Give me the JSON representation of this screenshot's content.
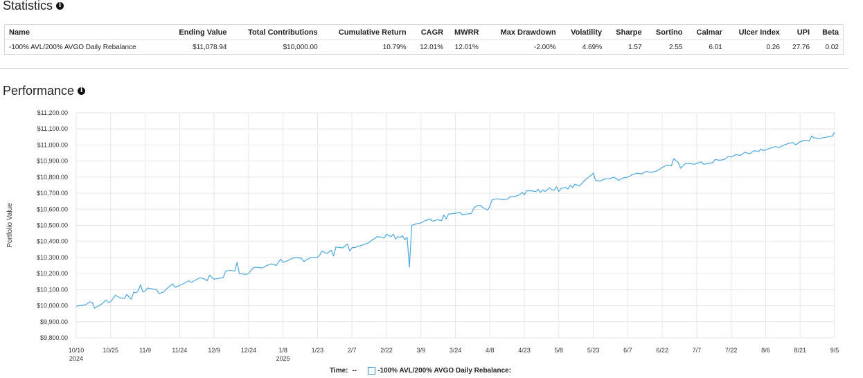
{
  "statistics": {
    "title": "Statistics",
    "columns": [
      "Name",
      "Ending Value",
      "Total Contributions",
      "Cumulative Return",
      "CAGR",
      "MWRR",
      "Max Drawdown",
      "Volatility",
      "Sharpe",
      "Sortino",
      "Calmar",
      "Ulcer Index",
      "UPI",
      "Beta"
    ],
    "row": {
      "name": "-100% AVL/200% AVGO Daily Rebalance",
      "ending_value": "$11,078.94",
      "total_contributions": "$10,000.00",
      "cumulative_return": "10.79%",
      "cagr": "12.01%",
      "mwrr": "12.01%",
      "max_drawdown": "-2.00%",
      "volatility": "4.69%",
      "sharpe": "1.57",
      "sortino": "2.55",
      "calmar": "6.01",
      "ulcer_index": "0.26",
      "upi": "27.76",
      "beta": "0.02"
    }
  },
  "performance": {
    "title": "Performance",
    "legend": {
      "time_label": "Time:",
      "time_value": "--",
      "series_label": "-100% AVL/200% AVGO Daily Rebalance:"
    }
  },
  "chart_data": {
    "type": "line",
    "ylabel": "Portfolio Value",
    "xlabel": "",
    "ylim": [
      9800,
      11200
    ],
    "y_ticks": [
      "$9,800.00",
      "$9,900.00",
      "$10,000.00",
      "$10,100.00",
      "$10,200.00",
      "$10,300.00",
      "$10,400.00",
      "$10,500.00",
      "$10,600.00",
      "$10,700.00",
      "$10,800.00",
      "$10,900.00",
      "$11,000.00",
      "$11,100.00",
      "$11,200.00"
    ],
    "x_ticks": [
      {
        "label": "10/10",
        "sub": "2024"
      },
      {
        "label": "10/25",
        "sub": ""
      },
      {
        "label": "11/9",
        "sub": ""
      },
      {
        "label": "11/24",
        "sub": ""
      },
      {
        "label": "12/9",
        "sub": ""
      },
      {
        "label": "12/24",
        "sub": ""
      },
      {
        "label": "1/8",
        "sub": "2025"
      },
      {
        "label": "1/23",
        "sub": ""
      },
      {
        "label": "2/7",
        "sub": ""
      },
      {
        "label": "2/22",
        "sub": ""
      },
      {
        "label": "3/9",
        "sub": ""
      },
      {
        "label": "3/24",
        "sub": ""
      },
      {
        "label": "4/8",
        "sub": ""
      },
      {
        "label": "4/23",
        "sub": ""
      },
      {
        "label": "5/8",
        "sub": ""
      },
      {
        "label": "5/23",
        "sub": ""
      },
      {
        "label": "6/7",
        "sub": ""
      },
      {
        "label": "6/22",
        "sub": ""
      },
      {
        "label": "7/7",
        "sub": ""
      },
      {
        "label": "7/22",
        "sub": ""
      },
      {
        "label": "8/6",
        "sub": ""
      },
      {
        "label": "8/21",
        "sub": ""
      },
      {
        "label": "9/5",
        "sub": ""
      }
    ],
    "grid": true,
    "series": [
      {
        "name": "-100% AVL/200% AVGO Daily Rebalance",
        "color": "#4aa8e0",
        "points": [
          [
            "10/10",
            9995
          ],
          [
            "10/11",
            10000
          ],
          [
            "10/14",
            10005
          ],
          [
            "10/16",
            10025
          ],
          [
            "10/17",
            10020
          ],
          [
            "10/18",
            9985
          ],
          [
            "10/21",
            10010
          ],
          [
            "10/23",
            10035
          ],
          [
            "10/24",
            10020
          ],
          [
            "10/25",
            10025
          ],
          [
            "10/27",
            10065
          ],
          [
            "10/29",
            10050
          ],
          [
            "10/31",
            10045
          ],
          [
            "11/1",
            10070
          ],
          [
            "11/3",
            10040
          ],
          [
            "11/4",
            10085
          ],
          [
            "11/5",
            10080
          ],
          [
            "11/6",
            10095
          ],
          [
            "11/7",
            10130
          ],
          [
            "11/8",
            10085
          ],
          [
            "11/9",
            10090
          ],
          [
            "11/10",
            10110
          ],
          [
            "11/12",
            10105
          ],
          [
            "11/14",
            10100
          ],
          [
            "11/15",
            10075
          ],
          [
            "11/17",
            10085
          ],
          [
            "11/18",
            10100
          ],
          [
            "11/20",
            10125
          ],
          [
            "11/21",
            10135
          ],
          [
            "11/22",
            10115
          ],
          [
            "11/24",
            10125
          ],
          [
            "11/26",
            10140
          ],
          [
            "11/28",
            10155
          ],
          [
            "11/29",
            10145
          ],
          [
            "12/1",
            10160
          ],
          [
            "12/3",
            10175
          ],
          [
            "12/5",
            10165
          ],
          [
            "12/6",
            10155
          ],
          [
            "12/7",
            10190
          ],
          [
            "12/9",
            10165
          ],
          [
            "12/11",
            10170
          ],
          [
            "12/13",
            10175
          ],
          [
            "12/14",
            10215
          ],
          [
            "12/16",
            10220
          ],
          [
            "12/18",
            10215
          ],
          [
            "12/19",
            10270
          ],
          [
            "12/20",
            10200
          ],
          [
            "12/23",
            10195
          ],
          [
            "12/24",
            10200
          ],
          [
            "12/26",
            10235
          ],
          [
            "12/27",
            10240
          ],
          [
            "12/30",
            10235
          ],
          [
            "1/1",
            10250
          ],
          [
            "1/3",
            10260
          ],
          [
            "1/5",
            10250
          ],
          [
            "1/7",
            10290
          ],
          [
            "1/8",
            10270
          ],
          [
            "1/10",
            10280
          ],
          [
            "1/12",
            10295
          ],
          [
            "1/14",
            10300
          ],
          [
            "1/16",
            10295
          ],
          [
            "1/17",
            10275
          ],
          [
            "1/20",
            10300
          ],
          [
            "1/22",
            10300
          ],
          [
            "1/23",
            10300
          ],
          [
            "1/24",
            10315
          ],
          [
            "1/25",
            10340
          ],
          [
            "1/27",
            10325
          ],
          [
            "1/29",
            10345
          ],
          [
            "1/30",
            10310
          ],
          [
            "1/31",
            10365
          ],
          [
            "2/3",
            10360
          ],
          [
            "2/5",
            10385
          ],
          [
            "2/6",
            10340
          ],
          [
            "2/7",
            10360
          ],
          [
            "2/9",
            10365
          ],
          [
            "2/11",
            10375
          ],
          [
            "2/13",
            10385
          ],
          [
            "2/14",
            10390
          ],
          [
            "2/16",
            10410
          ],
          [
            "2/18",
            10430
          ],
          [
            "2/20",
            10425
          ],
          [
            "2/21",
            10420
          ],
          [
            "2/22",
            10445
          ],
          [
            "2/24",
            10430
          ],
          [
            "2/25",
            10445
          ],
          [
            "2/26",
            10415
          ],
          [
            "2/27",
            10430
          ],
          [
            "2/28",
            10425
          ],
          [
            "3/1",
            10435
          ],
          [
            "3/2",
            10410
          ],
          [
            "3/3",
            10425
          ],
          [
            "3/4",
            10240
          ],
          [
            "3/5",
            10500
          ],
          [
            "3/7",
            10510
          ],
          [
            "3/9",
            10515
          ],
          [
            "3/11",
            10530
          ],
          [
            "3/13",
            10540
          ],
          [
            "3/14",
            10525
          ],
          [
            "3/16",
            10535
          ],
          [
            "3/18",
            10530
          ],
          [
            "3/19",
            10565
          ],
          [
            "3/20",
            10540
          ],
          [
            "3/21",
            10570
          ],
          [
            "3/24",
            10575
          ],
          [
            "3/26",
            10580
          ],
          [
            "3/27",
            10565
          ],
          [
            "3/29",
            10570
          ],
          [
            "3/31",
            10575
          ],
          [
            "4/1",
            10605
          ],
          [
            "4/2",
            10620
          ],
          [
            "4/4",
            10625
          ],
          [
            "4/5",
            10610
          ],
          [
            "4/7",
            10595
          ],
          [
            "4/8",
            10620
          ],
          [
            "4/9",
            10660
          ],
          [
            "4/11",
            10665
          ],
          [
            "4/14",
            10660
          ],
          [
            "4/16",
            10665
          ],
          [
            "4/17",
            10680
          ],
          [
            "4/19",
            10680
          ],
          [
            "4/21",
            10690
          ],
          [
            "4/22",
            10705
          ],
          [
            "4/23",
            10690
          ],
          [
            "4/24",
            10715
          ],
          [
            "4/26",
            10715
          ],
          [
            "4/28",
            10710
          ],
          [
            "4/29",
            10725
          ],
          [
            "4/30",
            10705
          ],
          [
            "5/1",
            10720
          ],
          [
            "5/2",
            10710
          ],
          [
            "5/4",
            10735
          ],
          [
            "5/5",
            10720
          ],
          [
            "5/6",
            10720
          ],
          [
            "5/7",
            10740
          ],
          [
            "5/8",
            10710
          ],
          [
            "5/9",
            10730
          ],
          [
            "5/11",
            10735
          ],
          [
            "5/12",
            10725
          ],
          [
            "5/13",
            10750
          ],
          [
            "5/14",
            10735
          ],
          [
            "5/15",
            10755
          ],
          [
            "5/17",
            10745
          ],
          [
            "5/19",
            10775
          ],
          [
            "5/20",
            10790
          ],
          [
            "5/22",
            10810
          ],
          [
            "5/23",
            10825
          ],
          [
            "5/24",
            10780
          ],
          [
            "5/26",
            10775
          ],
          [
            "5/28",
            10790
          ],
          [
            "5/30",
            10790
          ],
          [
            "6/1",
            10800
          ],
          [
            "6/3",
            10780
          ],
          [
            "6/5",
            10795
          ],
          [
            "6/7",
            10800
          ],
          [
            "6/9",
            10815
          ],
          [
            "6/11",
            10825
          ],
          [
            "6/13",
            10820
          ],
          [
            "6/15",
            10835
          ],
          [
            "6/17",
            10830
          ],
          [
            "6/19",
            10835
          ],
          [
            "6/21",
            10850
          ],
          [
            "6/22",
            10860
          ],
          [
            "6/24",
            10875
          ],
          [
            "6/26",
            10870
          ],
          [
            "6/27",
            10915
          ],
          [
            "6/29",
            10890
          ],
          [
            "6/30",
            10855
          ],
          [
            "7/2",
            10885
          ],
          [
            "7/4",
            10885
          ],
          [
            "7/6",
            10880
          ],
          [
            "7/7",
            10885
          ],
          [
            "7/9",
            10895
          ],
          [
            "7/10",
            10880
          ],
          [
            "7/12",
            10885
          ],
          [
            "7/14",
            10890
          ],
          [
            "7/15",
            10910
          ],
          [
            "7/17",
            10905
          ],
          [
            "7/19",
            10910
          ],
          [
            "7/21",
            10930
          ],
          [
            "7/22",
            10925
          ],
          [
            "7/24",
            10940
          ],
          [
            "7/26",
            10935
          ],
          [
            "7/28",
            10955
          ],
          [
            "7/30",
            10945
          ],
          [
            "8/1",
            10965
          ],
          [
            "8/3",
            10960
          ],
          [
            "8/4",
            10975
          ],
          [
            "8/5",
            10965
          ],
          [
            "8/6",
            10970
          ],
          [
            "8/8",
            10980
          ],
          [
            "8/10",
            10990
          ],
          [
            "8/12",
            10985
          ],
          [
            "8/14",
            11000
          ],
          [
            "8/16",
            11010
          ],
          [
            "8/18",
            11015
          ],
          [
            "8/19",
            11000
          ],
          [
            "8/21",
            11020
          ],
          [
            "8/23",
            11030
          ],
          [
            "8/25",
            11025
          ],
          [
            "8/26",
            11055
          ],
          [
            "8/27",
            11045
          ],
          [
            "8/29",
            11040
          ],
          [
            "8/31",
            11045
          ],
          [
            "9/2",
            11050
          ],
          [
            "9/4",
            11055
          ],
          [
            "9/5",
            11079
          ]
        ]
      }
    ]
  }
}
